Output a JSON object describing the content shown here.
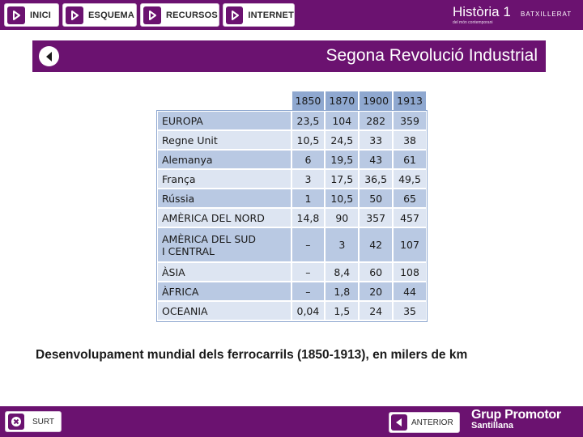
{
  "nav": {
    "buttons": [
      {
        "label": "INICI",
        "icon": "home-arrow-icon"
      },
      {
        "label": "ESQUEMA",
        "icon": "arrow-icon"
      },
      {
        "label": "RECURSOS",
        "icon": "arrow-icon"
      },
      {
        "label": "INTERNET",
        "icon": "arrow-icon"
      }
    ]
  },
  "brand": {
    "title": "Història 1",
    "subtitle": "del món contemporani",
    "level": "BATXILLERAT"
  },
  "header": {
    "title": "Segona Revolució Industrial"
  },
  "table": {
    "columns": [
      "1850",
      "1870",
      "1900",
      "1913"
    ],
    "rows": [
      {
        "region": "EUROPA",
        "values": [
          "23,5",
          "104",
          "282",
          "359"
        ]
      },
      {
        "region": "Regne Unit",
        "values": [
          "10,5",
          "24,5",
          "33",
          "38"
        ]
      },
      {
        "region": "Alemanya",
        "values": [
          "6",
          "19,5",
          "43",
          "61"
        ]
      },
      {
        "region": "França",
        "values": [
          "3",
          "17,5",
          "36,5",
          "49,5"
        ]
      },
      {
        "region": "Rússia",
        "values": [
          "1",
          "10,5",
          "50",
          "65"
        ]
      },
      {
        "region": "AMÈRICA DEL NORD",
        "values": [
          "14,8",
          "90",
          "357",
          "457"
        ]
      },
      {
        "region_line1": "AMÈRICA DEL SUD",
        "region_line2": "I CENTRAL",
        "values": [
          "–",
          "3",
          "42",
          "107"
        ]
      },
      {
        "region": "ÀSIA",
        "values": [
          "–",
          "8,4",
          "60",
          "108"
        ]
      },
      {
        "region": "ÀFRICA",
        "values": [
          "–",
          "1,8",
          "20",
          "44"
        ]
      },
      {
        "region": "OCEANIA",
        "values": [
          "0,04",
          "1,5",
          "24",
          "35"
        ]
      }
    ]
  },
  "caption": "Desenvolupament mundial dels ferrocarrils (1850-1913), en milers de km",
  "footer": {
    "exit_label": "SURT",
    "previous_label": "ANTERIOR",
    "logo_line1": "Grup Promotor",
    "logo_line2": "Santillana"
  },
  "colors": {
    "accent": "#6b1270",
    "table_header": "#8fa8d0",
    "row_dark": "#b9c9e3",
    "row_light": "#dde5f2"
  }
}
